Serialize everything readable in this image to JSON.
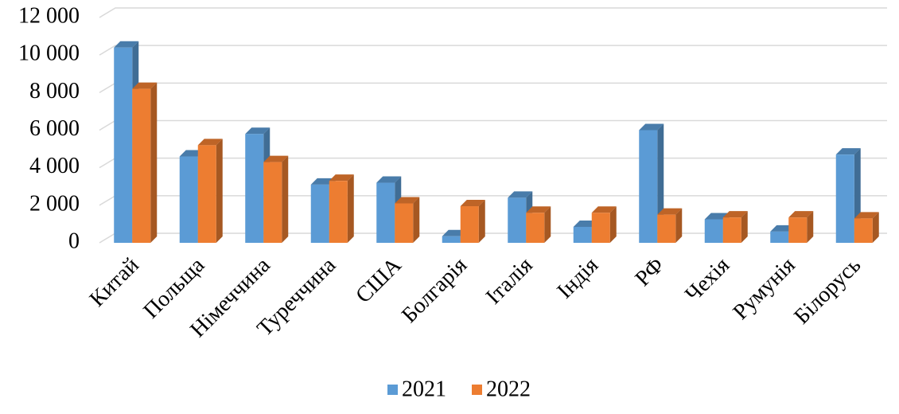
{
  "chart_data": {
    "type": "bar3d",
    "categories": [
      "Китай",
      "Польща",
      "Німеччина",
      "Туреччина",
      "США",
      "Болгарія",
      "Італія",
      "Індія",
      "РФ",
      "Чехія",
      "Румунія",
      "Білорусь"
    ],
    "series": [
      {
        "name": "2021",
        "color": "#5b9bd5",
        "values": [
          10400,
          4600,
          5800,
          3100,
          3200,
          350,
          2400,
          850,
          6000,
          1250,
          600,
          4700
        ]
      },
      {
        "name": "2022",
        "color": "#ed7d31",
        "values": [
          8200,
          5200,
          4300,
          3300,
          2100,
          1950,
          1600,
          1600,
          1500,
          1350,
          1350,
          1300
        ]
      }
    ],
    "ylim": [
      0,
      12000
    ],
    "yticks": [
      0,
      {
        "value": 2000,
        "label": "2 000"
      },
      {
        "value": 4000,
        "label": "4 000"
      },
      {
        "value": 6000,
        "label": "6 000"
      },
      {
        "value": 8000,
        "label": "8 000"
      },
      {
        "value": 10000,
        "label": "10 000"
      },
      {
        "value": 12000,
        "label": "12 000"
      }
    ],
    "grid": true,
    "legend": "bottom"
  }
}
